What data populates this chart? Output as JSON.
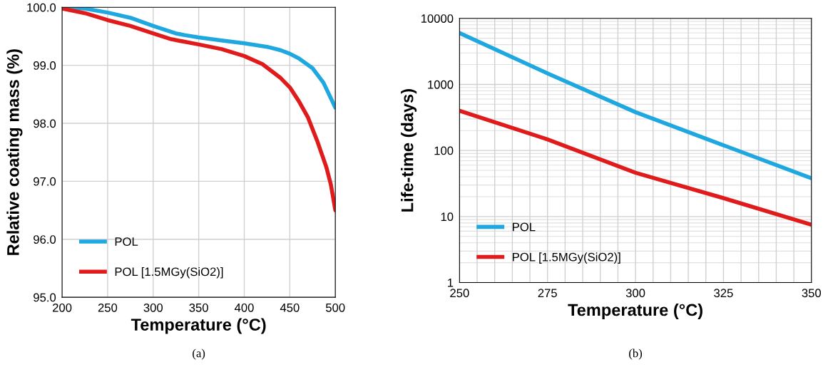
{
  "chart_data": [
    {
      "type": "line",
      "xlabel": "Temperature (°C)",
      "ylabel": "Relative coating mass (%)",
      "annotations": [
        "(a)"
      ],
      "xlim": [
        200,
        500
      ],
      "ylim": [
        95,
        100
      ],
      "xticks": [
        200,
        250,
        300,
        350,
        400,
        450,
        500
      ],
      "yticks": [
        {
          "value": 95,
          "label": "95.0"
        },
        {
          "value": 96,
          "label": "96.0"
        },
        {
          "value": 97,
          "label": "97.0"
        },
        {
          "value": 98,
          "label": "98.0"
        },
        {
          "value": 99,
          "label": "99.0"
        },
        {
          "value": 100,
          "label": "100.0"
        }
      ],
      "grid": true,
      "legend": "bottom left",
      "line_style": "solid",
      "series": [
        {
          "name": "POL",
          "color": "#1fa8e0",
          "x": [
            200,
            225,
            250,
            275,
            300,
            325,
            335,
            350,
            375,
            400,
            425,
            440,
            450,
            460,
            475,
            487,
            500
          ],
          "values": [
            100,
            99.98,
            99.91,
            99.82,
            99.68,
            99.55,
            99.52,
            99.48,
            99.43,
            99.38,
            99.32,
            99.26,
            99.2,
            99.12,
            98.95,
            98.7,
            98.27
          ]
        },
        {
          "name": "POL [1.5MGy(SiO2)]",
          "color": "#e01b1b",
          "x": [
            200,
            225,
            250,
            275,
            300,
            320,
            350,
            375,
            400,
            420,
            440,
            450,
            460,
            470,
            480,
            490,
            495,
            500
          ],
          "values": [
            99.98,
            99.9,
            99.78,
            99.68,
            99.55,
            99.45,
            99.36,
            99.28,
            99.16,
            99.02,
            98.78,
            98.62,
            98.38,
            98.1,
            97.7,
            97.25,
            96.95,
            96.5
          ]
        }
      ]
    },
    {
      "type": "line",
      "xlabel": "Temperature (°C)",
      "ylabel": "Life-time (days)",
      "annotations": [
        "(b)"
      ],
      "log": "y",
      "xlim": [
        250,
        350
      ],
      "ylim": [
        1,
        10000
      ],
      "xticks": [
        250,
        {
          "value": 255,
          "label": null
        },
        {
          "value": 260,
          "label": null
        },
        {
          "value": 265,
          "label": null
        },
        {
          "value": 270,
          "label": null
        },
        275,
        {
          "value": 280,
          "label": null
        },
        {
          "value": 285,
          "label": null
        },
        {
          "value": 290,
          "label": null
        },
        {
          "value": 295,
          "label": null
        },
        300,
        {
          "value": 305,
          "label": null
        },
        {
          "value": 310,
          "label": null
        },
        {
          "value": 315,
          "label": null
        },
        {
          "value": 320,
          "label": null
        },
        325,
        {
          "value": 330,
          "label": null
        },
        {
          "value": 335,
          "label": null
        },
        {
          "value": 340,
          "label": null
        },
        {
          "value": 345,
          "label": null
        },
        350
      ],
      "yticks": [
        1,
        10,
        100,
        1000,
        10000
      ],
      "grid": true,
      "legend": "bottom left",
      "line_style": "solid",
      "series": [
        {
          "name": "POL",
          "color": "#1fa8e0",
          "x": [
            250,
            275,
            300,
            325,
            350
          ],
          "values": [
            6000,
            1470,
            380,
            120,
            38
          ]
        },
        {
          "name": "POL [1.5MGy(SiO2)]",
          "color": "#e01b1b",
          "x": [
            250,
            275,
            300,
            325,
            350
          ],
          "values": [
            400,
            147,
            46,
            19,
            7.5
          ]
        }
      ]
    }
  ]
}
